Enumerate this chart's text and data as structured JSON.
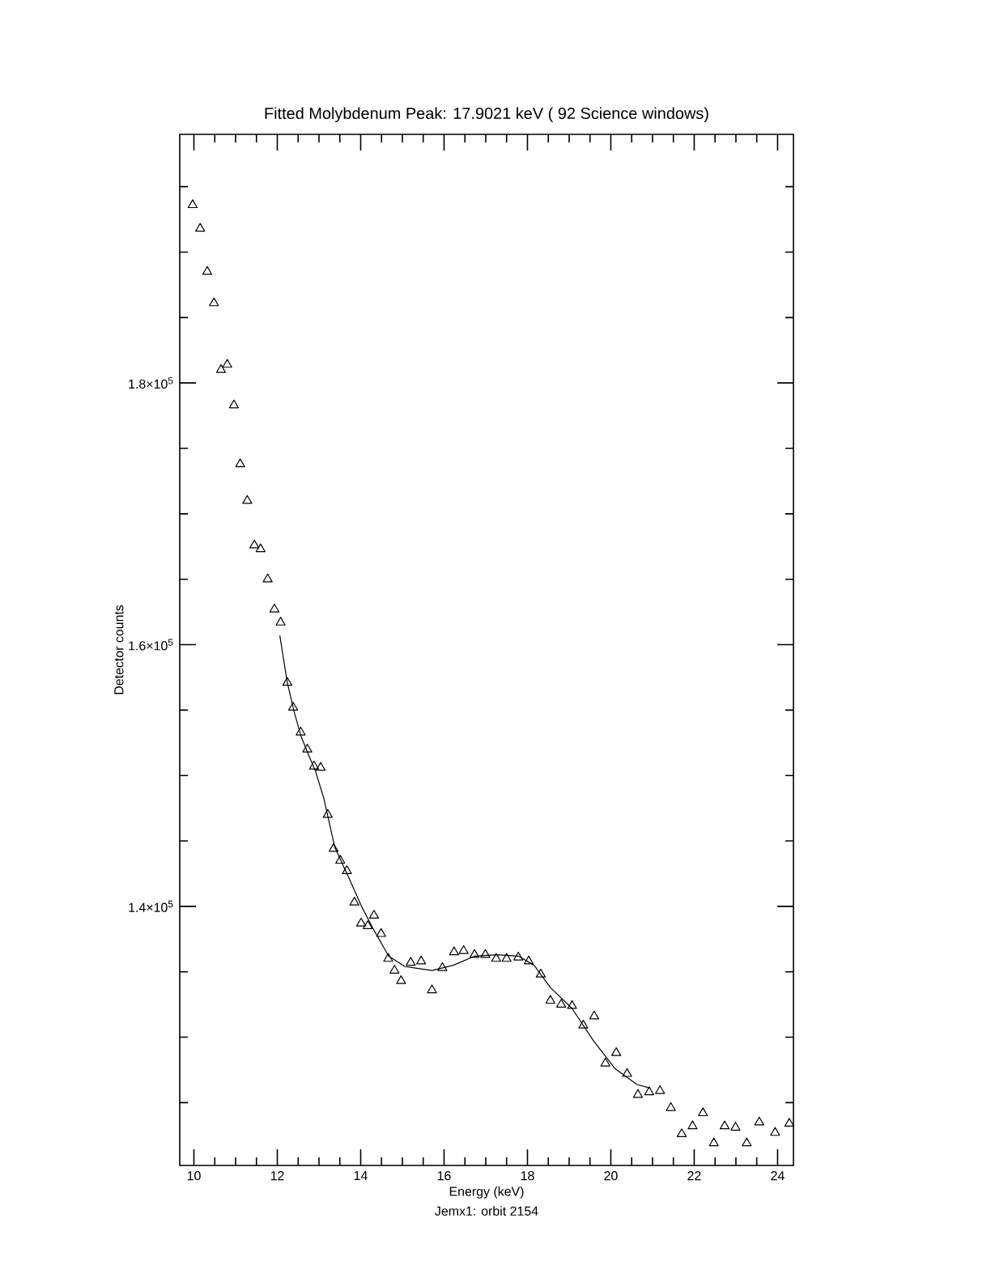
{
  "chart_data": {
    "type": "scatter",
    "title": "Fitted Molybdenum Peak: 17.9021 keV ( 92 Science windows)",
    "xlabel": "Energy (keV)",
    "ylabel": "Detector counts",
    "annotations": [
      "Jemx1: orbit 2154"
    ],
    "xlim": [
      9.66,
      24.38
    ],
    "ylim": [
      120200,
      199000
    ],
    "xticks": [
      10,
      {
        "value": 10.5,
        "label": null
      },
      {
        "value": 11,
        "label": null
      },
      {
        "value": 11.5,
        "label": null
      },
      12,
      {
        "value": 12.5,
        "label": null
      },
      {
        "value": 13,
        "label": null
      },
      {
        "value": 13.5,
        "label": null
      },
      14,
      {
        "value": 14.5,
        "label": null
      },
      {
        "value": 15,
        "label": null
      },
      {
        "value": 15.5,
        "label": null
      },
      16,
      {
        "value": 16.5,
        "label": null
      },
      {
        "value": 17,
        "label": null
      },
      {
        "value": 17.5,
        "label": null
      },
      18,
      {
        "value": 18.5,
        "label": null
      },
      {
        "value": 19,
        "label": null
      },
      {
        "value": 19.5,
        "label": null
      },
      20,
      {
        "value": 20.5,
        "label": null
      },
      {
        "value": 21,
        "label": null
      },
      {
        "value": 21.5,
        "label": null
      },
      22,
      {
        "value": 22.5,
        "label": null
      },
      {
        "value": 23,
        "label": null
      },
      {
        "value": 23.5,
        "label": null
      },
      24
    ],
    "yticks": [
      {
        "value": 125000,
        "label": null
      },
      {
        "value": 130000,
        "label": null
      },
      {
        "value": 135000,
        "label": null
      },
      {
        "value": 140000,
        "label": "1.4×10$^{5}$"
      },
      {
        "value": 145000,
        "label": null
      },
      {
        "value": 150000,
        "label": null
      },
      {
        "value": 155000,
        "label": null
      },
      {
        "value": 160000,
        "label": "1.6×10$^{5}$"
      },
      {
        "value": 165000,
        "label": null
      },
      {
        "value": 170000,
        "label": null
      },
      {
        "value": 175000,
        "label": null
      },
      {
        "value": 180000,
        "label": "1.8×10$^{5}$"
      },
      {
        "value": 185000,
        "label": null
      },
      {
        "value": 190000,
        "label": null
      },
      {
        "value": 195000,
        "label": null
      }
    ],
    "series": [
      {
        "type": "scatter",
        "marker": "triangle",
        "color": "#000000",
        "x": [
          9.97,
          10.15,
          10.32,
          10.48,
          10.65,
          10.8,
          10.96,
          11.11,
          11.28,
          11.45,
          11.6,
          11.77,
          11.93,
          12.08,
          12.24,
          12.38,
          12.56,
          12.72,
          12.88,
          13.04,
          13.21,
          13.35,
          13.51,
          13.67,
          13.85,
          14.01,
          14.17,
          14.32,
          14.49,
          14.66,
          14.81,
          14.97,
          15.2,
          15.45,
          15.71,
          15.96,
          16.24,
          16.47,
          16.73,
          16.99,
          17.25,
          17.5,
          17.78,
          18.03,
          18.32,
          18.55,
          18.81,
          19.07,
          19.34,
          19.6,
          19.87,
          20.13,
          20.39,
          20.65,
          20.92,
          21.18,
          21.44,
          21.7,
          21.96,
          22.21,
          22.47,
          22.73,
          22.99,
          23.26,
          23.56,
          23.94,
          24.28
        ],
        "values": [
          193600,
          191800,
          188500,
          186100,
          181000,
          181400,
          178300,
          173800,
          171000,
          167600,
          167300,
          165000,
          162700,
          161700,
          157100,
          155200,
          153300,
          152000,
          150700,
          150600,
          147000,
          144400,
          143500,
          142700,
          140300,
          138700,
          138500,
          139300,
          137900,
          136000,
          135100,
          134300,
          135700,
          135800,
          133600,
          135300,
          136500,
          136600,
          136300,
          136300,
          136000,
          136000,
          136100,
          135800,
          134800,
          132800,
          132500,
          132400,
          130900,
          131600,
          128000,
          128800,
          127200,
          125600,
          125800,
          125900,
          124600,
          122600,
          123200,
          124200,
          121900,
          123200,
          123100,
          121900,
          123500,
          122700,
          123400
        ]
      },
      {
        "type": "line",
        "marker": "none",
        "color": "#000000",
        "x": [
          12.06,
          12.24,
          12.41,
          12.57,
          12.76,
          12.92,
          13.12,
          13.38,
          13.7,
          14.02,
          14.28,
          14.67,
          15.06,
          15.71,
          16.22,
          16.74,
          17.26,
          17.78,
          18.16,
          18.55,
          19.07,
          19.59,
          20.1,
          20.62,
          20.95
        ],
        "values": [
          160700,
          157100,
          154800,
          153000,
          151500,
          150300,
          148200,
          144500,
          142300,
          140000,
          138400,
          136200,
          135400,
          135100,
          135500,
          136200,
          136300,
          136200,
          135500,
          133800,
          132200,
          129700,
          127600,
          126400,
          126100
        ]
      }
    ]
  }
}
